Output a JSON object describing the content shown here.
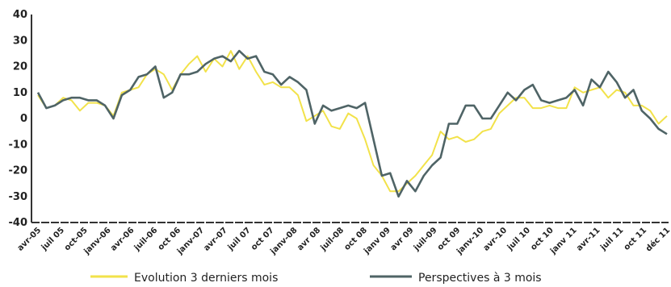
{
  "chart_data": {
    "type": "line",
    "ylim": [
      -40,
      40
    ],
    "yticks": [
      40,
      30,
      20,
      10,
      0,
      -10,
      -20,
      -30,
      -40
    ],
    "grid": false,
    "legend_position": "bottom",
    "x_ticks": [
      "avr-05",
      "juil 05",
      "oct-05",
      "janv-06",
      "avr-06",
      "juil-06",
      "oct 06",
      "janv-07",
      "avr-07",
      "juil 07",
      "oct 07",
      "janv-08",
      "avr 08",
      "juil-08",
      "oct 08",
      "janv 09",
      "avr 09",
      "juil-09",
      "oct 09",
      "janv-10",
      "avr-10",
      "juil 10",
      "oct 10",
      "janv 11",
      "avr-11",
      "juil 11",
      "oct 11",
      "déc 11"
    ],
    "series": [
      {
        "name": "Evolution 3 derniers mois",
        "color": "#f2e24a",
        "values": [
          9,
          4,
          5,
          8,
          7,
          3,
          6,
          6,
          5,
          1,
          10,
          11,
          12,
          17,
          19,
          17,
          11,
          17,
          21,
          24,
          18,
          23,
          20,
          26,
          19,
          24,
          18,
          13,
          14,
          12,
          12,
          9,
          -1,
          1,
          3,
          -3,
          -4,
          2,
          0,
          -8,
          -18,
          -22,
          -28,
          -28,
          -25,
          -22,
          -18,
          -14,
          -5,
          -8,
          -7,
          -9,
          -8,
          -5,
          -4,
          2,
          5,
          8,
          8,
          4,
          4,
          5,
          4,
          4,
          12,
          10,
          11,
          12,
          8,
          11,
          10,
          5,
          5,
          3,
          -2,
          1
        ],
        "marker_points": []
      },
      {
        "name": "Perspectives à 3 mois",
        "color": "#4f6466",
        "values": [
          10,
          4,
          5,
          7,
          8,
          8,
          7,
          7,
          5,
          0,
          9,
          11,
          16,
          17,
          20,
          8,
          10,
          17,
          17,
          18,
          21,
          23,
          24,
          22,
          26,
          23,
          24,
          18,
          17,
          13,
          16,
          14,
          11,
          -2,
          5,
          3,
          4,
          5,
          4,
          6,
          -8,
          -22,
          -21,
          -30,
          -24,
          -28,
          -22,
          -18,
          -15,
          -2,
          -2,
          5,
          5,
          0,
          0,
          5,
          10,
          7,
          11,
          13,
          7,
          6,
          7,
          8,
          11,
          5,
          15,
          12,
          18,
          14,
          8,
          11,
          3,
          0,
          -4,
          -6
        ],
        "marker_points": []
      }
    ]
  }
}
